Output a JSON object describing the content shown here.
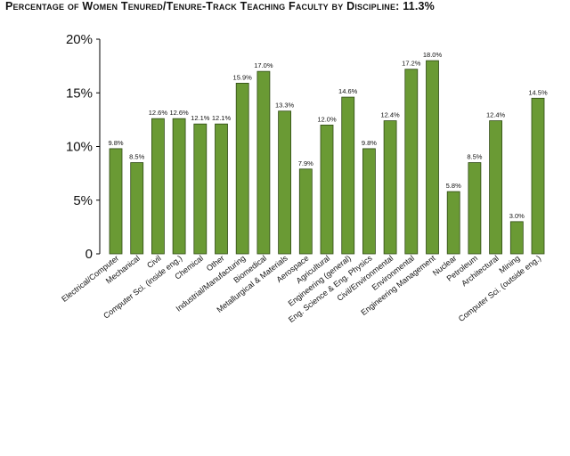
{
  "colors": {
    "bar": "#6a9a34",
    "bar_stroke": "#2f4a14",
    "axis": "#000000"
  },
  "chart_data": {
    "type": "bar",
    "title": "Percentage of Women Tenured/Tenure-Track Teaching Faculty by Discipline: 11.3%",
    "xlabel": "",
    "ylabel": "",
    "ylim": [
      0,
      20
    ],
    "yticks": [
      "0",
      "5%",
      "10%",
      "15%",
      "20%"
    ],
    "grid": false,
    "categories": [
      "Electrical/Computer",
      "Mechanical",
      "Civil",
      "Computer Sci. (inside eng.)",
      "Chemical",
      "Other",
      "Industrial/Manufacturing",
      "Biomedical",
      "Metallurgical & Materials",
      "Aerospace",
      "Agricultural",
      "Engineering (general)",
      "Eng. Science & Eng. Physics",
      "Civil/Environmental",
      "Environmental",
      "Engineering Management",
      "Nuclear",
      "Petroleum",
      "Architectural",
      "Mining",
      "Computer Sci. (outside eng.)"
    ],
    "values": [
      9.8,
      8.5,
      12.6,
      12.6,
      12.1,
      12.1,
      15.9,
      17.0,
      13.3,
      7.9,
      12.0,
      14.6,
      9.8,
      12.4,
      17.2,
      18.0,
      5.8,
      8.5,
      12.4,
      3.0,
      14.5
    ],
    "data_labels": [
      "9.8%",
      "8.5%",
      "12.6%",
      "12.6%",
      "12.1%",
      "12.1%",
      "15.9%",
      "17.0%",
      "13.3%",
      "7.9%",
      "12.0%",
      "14.6%",
      "9.8%",
      "12.4%",
      "17.2%",
      "18.0%",
      "5.8%",
      "8.5%",
      "12.4%",
      "3.0%",
      "14.5%"
    ]
  }
}
